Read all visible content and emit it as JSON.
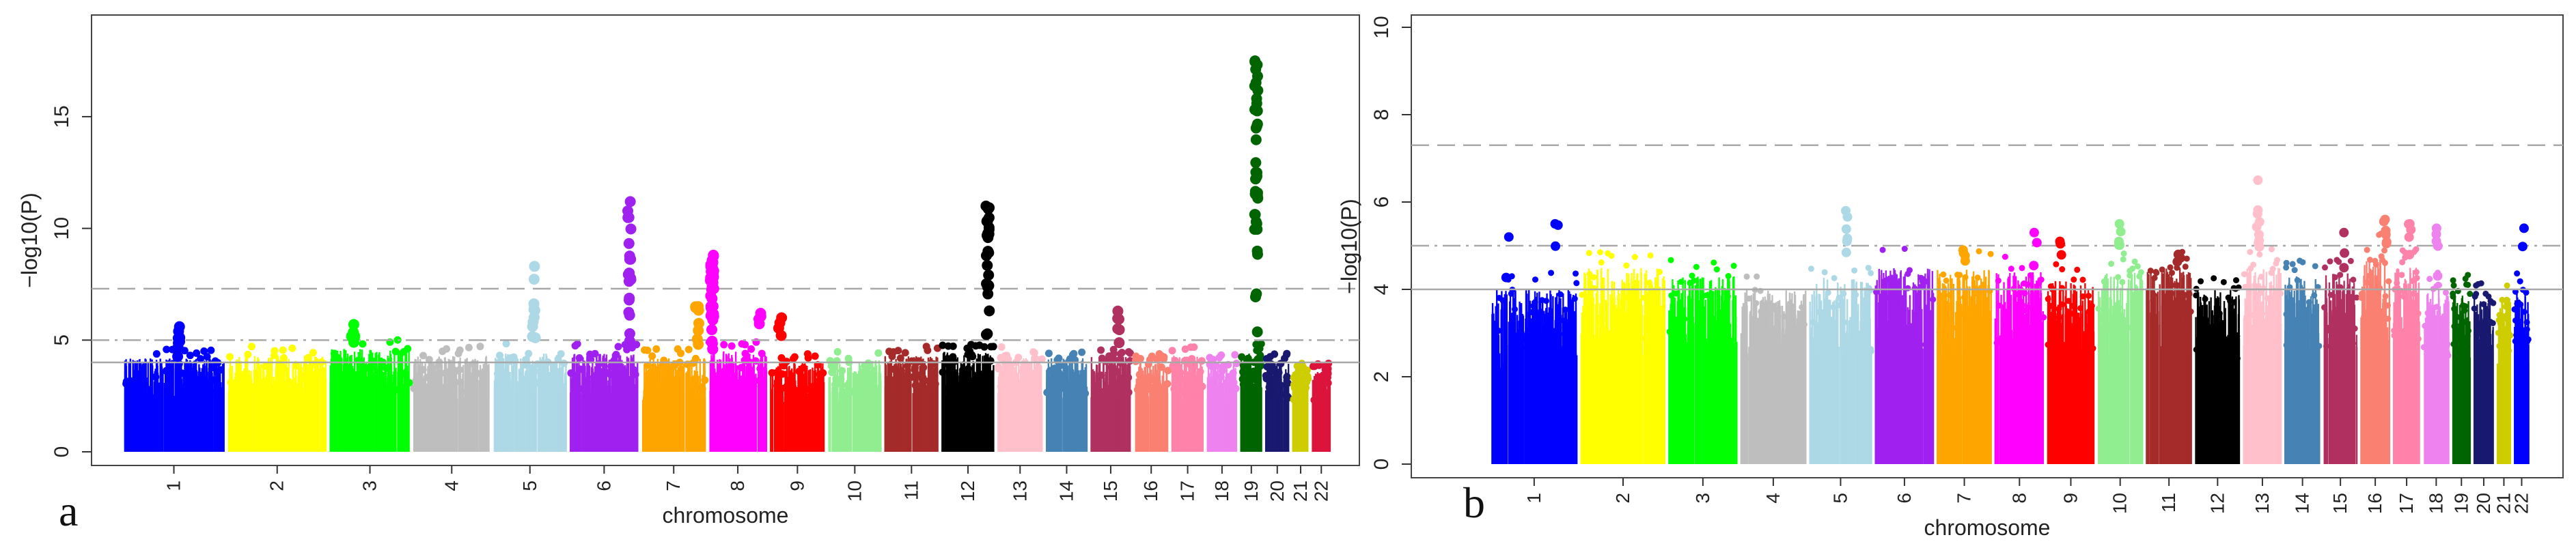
{
  "figure": {
    "panel_labels": [
      "a",
      "b"
    ]
  },
  "chart_data": [
    {
      "type": "scatter",
      "panel": "a",
      "xlabel": "chromosome",
      "ylabel": "−log10(P)",
      "ylim": [
        0,
        19
      ],
      "yticks": [
        0,
        5,
        10,
        15
      ],
      "categories": [
        "1",
        "2",
        "3",
        "4",
        "5",
        "6",
        "7",
        "8",
        "9",
        "10",
        "11",
        "12",
        "13",
        "14",
        "15",
        "16",
        "17",
        "18",
        "19",
        "20",
        "21",
        "22"
      ],
      "chrom_widths": [
        248,
        242,
        198,
        190,
        181,
        171,
        159,
        145,
        138,
        134,
        135,
        133,
        114,
        107,
        102,
        90,
        83,
        80,
        59,
        64,
        47,
        51
      ],
      "chrom_colors": [
        "#0000ff",
        "#ffff00",
        "#00ff00",
        "#bebebe",
        "#add8e6",
        "#a020f0",
        "#ffa500",
        "#ff00ff",
        "#ff0000",
        "#90ee90",
        "#a52a2a",
        "#000000",
        "#ffc0cb",
        "#4682b4",
        "#b03060",
        "#fa8072",
        "#ff82ab",
        "#ee82ee",
        "#006400",
        "#191970",
        "#cdcd00",
        "#dc143c"
      ],
      "base_max": [
        4.2,
        4.3,
        4.6,
        4.3,
        4.4,
        4.4,
        4.2,
        4.5,
        4.0,
        4.1,
        4.3,
        4.5,
        4.3,
        4.2,
        4.3,
        4.0,
        4.3,
        4.0,
        4.4,
        4.0,
        3.8,
        3.6
      ],
      "thresholds": [
        {
          "value": 7.3,
          "style": "dashed"
        },
        {
          "value": 5.0,
          "style": "dotdash"
        },
        {
          "value": 4.0,
          "style": "solid"
        }
      ],
      "peaks": [
        {
          "chrom": "1",
          "pos": 0.55,
          "max": 5.6,
          "n": 8
        },
        {
          "chrom": "3",
          "pos": 0.3,
          "max": 5.7,
          "n": 6
        },
        {
          "chrom": "5",
          "pos": 0.55,
          "max": 8.3,
          "n": 10
        },
        {
          "chrom": "6",
          "pos": 0.85,
          "max": 11.2,
          "n": 20
        },
        {
          "chrom": "7",
          "pos": 0.85,
          "max": 6.5,
          "n": 8
        },
        {
          "chrom": "8",
          "pos": 0.08,
          "max": 8.8,
          "n": 40
        },
        {
          "chrom": "8",
          "pos": 0.85,
          "max": 6.2,
          "n": 4
        },
        {
          "chrom": "9",
          "pos": 0.2,
          "max": 6.0,
          "n": 4
        },
        {
          "chrom": "12",
          "pos": 0.85,
          "max": 11.0,
          "n": 26
        },
        {
          "chrom": "15",
          "pos": 0.7,
          "max": 6.3,
          "n": 6
        },
        {
          "chrom": "19",
          "pos": 0.7,
          "max": 17.5,
          "n": 42
        }
      ]
    },
    {
      "type": "scatter",
      "panel": "b",
      "xlabel": "chromosome",
      "ylabel": "−log10(P)",
      "ylim": [
        0,
        10
      ],
      "yticks": [
        0,
        2,
        4,
        6,
        8,
        10
      ],
      "categories": [
        "1",
        "2",
        "3",
        "4",
        "5",
        "6",
        "7",
        "8",
        "9",
        "10",
        "11",
        "12",
        "13",
        "14",
        "15",
        "16",
        "17",
        "18",
        "19",
        "20",
        "21",
        "22"
      ],
      "chrom_widths": [
        248,
        242,
        198,
        190,
        181,
        171,
        159,
        145,
        138,
        134,
        135,
        133,
        114,
        107,
        102,
        90,
        83,
        80,
        59,
        64,
        47,
        51
      ],
      "chrom_colors": [
        "#0000ff",
        "#ffff00",
        "#00ff00",
        "#bebebe",
        "#add8e6",
        "#a020f0",
        "#ffa500",
        "#ff00ff",
        "#ff0000",
        "#90ee90",
        "#a52a2a",
        "#000000",
        "#ffc0cb",
        "#4682b4",
        "#b03060",
        "#fa8072",
        "#ff82ab",
        "#ee82ee",
        "#006400",
        "#191970",
        "#cdcd00",
        "#0000ff"
      ],
      "base_max": [
        4.0,
        4.5,
        4.3,
        4.0,
        4.3,
        4.5,
        4.5,
        4.4,
        4.2,
        4.4,
        4.5,
        4.0,
        4.5,
        4.3,
        4.4,
        4.8,
        4.5,
        4.0,
        4.0,
        3.8,
        3.8,
        4.0
      ],
      "thresholds": [
        {
          "value": 7.3,
          "style": "dashed"
        },
        {
          "value": 5.0,
          "style": "dotdash"
        },
        {
          "value": 4.0,
          "style": "solid"
        }
      ],
      "peaks": [
        {
          "chrom": "1",
          "pos": 0.2,
          "max": 5.2,
          "n": 2
        },
        {
          "chrom": "1",
          "pos": 0.75,
          "max": 5.5,
          "n": 3
        },
        {
          "chrom": "5",
          "pos": 0.6,
          "max": 5.8,
          "n": 6
        },
        {
          "chrom": "7",
          "pos": 0.5,
          "max": 4.9,
          "n": 4
        },
        {
          "chrom": "8",
          "pos": 0.8,
          "max": 5.3,
          "n": 3
        },
        {
          "chrom": "9",
          "pos": 0.3,
          "max": 5.1,
          "n": 3
        },
        {
          "chrom": "10",
          "pos": 0.5,
          "max": 5.5,
          "n": 5
        },
        {
          "chrom": "11",
          "pos": 0.7,
          "max": 4.8,
          "n": 3
        },
        {
          "chrom": "13",
          "pos": 0.4,
          "max": 6.5,
          "n": 9
        },
        {
          "chrom": "15",
          "pos": 0.6,
          "max": 5.3,
          "n": 3
        },
        {
          "chrom": "16",
          "pos": 0.8,
          "max": 5.6,
          "n": 6
        },
        {
          "chrom": "17",
          "pos": 0.6,
          "max": 5.5,
          "n": 5
        },
        {
          "chrom": "18",
          "pos": 0.5,
          "max": 5.4,
          "n": 5
        },
        {
          "chrom": "22",
          "pos": 0.6,
          "max": 5.4,
          "n": 2
        }
      ]
    }
  ]
}
